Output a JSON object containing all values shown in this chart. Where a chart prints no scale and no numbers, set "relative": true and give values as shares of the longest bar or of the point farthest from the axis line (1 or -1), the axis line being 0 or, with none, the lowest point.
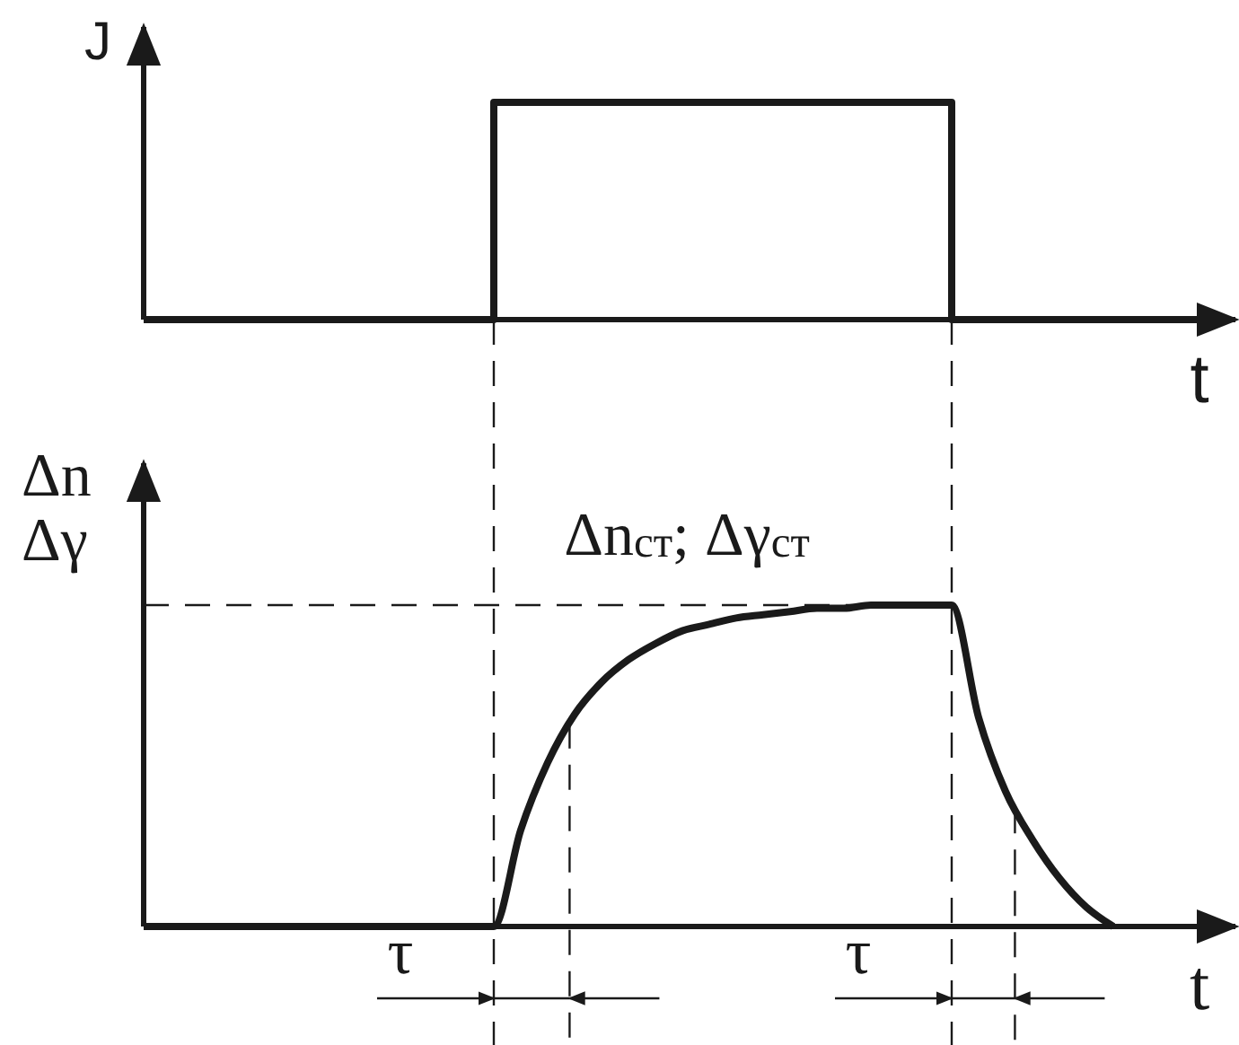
{
  "chart_data": [
    {
      "type": "step",
      "relative": true,
      "ylabel": "J",
      "xlabel": "t",
      "color": "#1a1a1a",
      "categories": [
        null,
        null,
        null,
        null,
        null,
        null,
        null,
        null,
        null,
        null,
        null,
        null,
        null,
        null,
        null,
        null,
        null,
        null,
        null,
        null,
        null,
        null,
        null,
        null,
        null,
        null,
        null,
        null,
        null,
        null,
        null,
        null,
        null,
        null,
        null,
        null,
        null,
        null,
        null,
        null,
        null
      ],
      "values": [
        0,
        0,
        0,
        0,
        0,
        0,
        0,
        0,
        0,
        0,
        0,
        0,
        0,
        1,
        1,
        1,
        1,
        1,
        1,
        1,
        1,
        1,
        1,
        1,
        1,
        1,
        1,
        1,
        1,
        1,
        0,
        0,
        0,
        0,
        0,
        0,
        0,
        0,
        0,
        0,
        0
      ]
    },
    {
      "type": "line",
      "relative": true,
      "ylabel": "Δn\nΔγ",
      "xlabel": "t",
      "color": "#1a1a1a",
      "categories": [
        null,
        null,
        null,
        null,
        null,
        null,
        null,
        null,
        null,
        null,
        null,
        null,
        null,
        null,
        null,
        null,
        null,
        null,
        null,
        null,
        null,
        null,
        null,
        null,
        null,
        null,
        null,
        null,
        null,
        null,
        null,
        null,
        null,
        null,
        null,
        null,
        null,
        null,
        null,
        null,
        null
      ],
      "values": [
        0,
        0,
        0,
        0,
        0,
        0,
        0,
        0,
        0,
        0,
        0,
        0,
        0,
        0,
        0.3,
        0.51,
        0.66,
        0.76,
        0.83,
        0.88,
        0.92,
        0.94,
        0.96,
        0.97,
        0.98,
        0.99,
        0.99,
        1,
        1,
        1,
        1,
        0.65,
        0.42,
        0.27,
        0.15,
        0.06,
        0,
        null,
        null,
        null,
        null
      ],
      "annotations": [
        "Δn$_{ст}$; Δγ$_{ст}$",
        "τ",
        "τ"
      ]
    }
  ]
}
